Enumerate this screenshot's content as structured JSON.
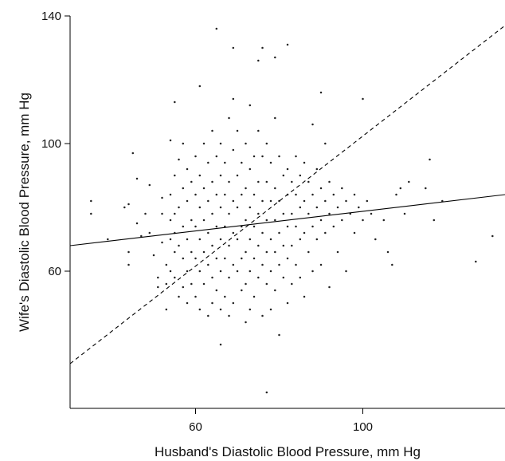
{
  "chart_data": {
    "type": "scatter",
    "title": "",
    "xlabel": "Husband's Diastolic Blood Pressure, mm Hg",
    "ylabel": "Wife's Diastolic Blood Pressure, mm Hg",
    "xlim": [
      30,
      134
    ],
    "ylim": [
      17,
      140
    ],
    "xticks": [
      60,
      100
    ],
    "yticks": [
      60,
      100,
      140
    ],
    "grid": false,
    "legend": "none",
    "colors": {
      "points": "#222222",
      "lines": "#000000"
    },
    "series": [
      {
        "kind": "points",
        "description_note": "",
        "points": [
          [
            35,
            82
          ],
          [
            35,
            78
          ],
          [
            39,
            70
          ],
          [
            43,
            80
          ],
          [
            44,
            81
          ],
          [
            44,
            66
          ],
          [
            44,
            62
          ],
          [
            45,
            97
          ],
          [
            46,
            89
          ],
          [
            46,
            75
          ],
          [
            47,
            71
          ],
          [
            48,
            78
          ],
          [
            49,
            87
          ],
          [
            49,
            72
          ],
          [
            50,
            65
          ],
          [
            51,
            58
          ],
          [
            51,
            55
          ],
          [
            52,
            83
          ],
          [
            52,
            78
          ],
          [
            52,
            69
          ],
          [
            53,
            62
          ],
          [
            53,
            56
          ],
          [
            53,
            48
          ],
          [
            54,
            101
          ],
          [
            54,
            84
          ],
          [
            54,
            76
          ],
          [
            54,
            70
          ],
          [
            54,
            60
          ],
          [
            55,
            113
          ],
          [
            55,
            90
          ],
          [
            55,
            78
          ],
          [
            55,
            72
          ],
          [
            55,
            66
          ],
          [
            55,
            58
          ],
          [
            56,
            95
          ],
          [
            56,
            80
          ],
          [
            56,
            68
          ],
          [
            56,
            52
          ],
          [
            57,
            100
          ],
          [
            57,
            86
          ],
          [
            57,
            74
          ],
          [
            57,
            64
          ],
          [
            57,
            55
          ],
          [
            58,
            92
          ],
          [
            58,
            82
          ],
          [
            58,
            70
          ],
          [
            58,
            60
          ],
          [
            58,
            50
          ],
          [
            59,
            88
          ],
          [
            59,
            76
          ],
          [
            59,
            66
          ],
          [
            59,
            56
          ],
          [
            60,
            96
          ],
          [
            60,
            84
          ],
          [
            60,
            74
          ],
          [
            60,
            64
          ],
          [
            60,
            52
          ],
          [
            61,
            118
          ],
          [
            61,
            90
          ],
          [
            61,
            80
          ],
          [
            61,
            70
          ],
          [
            61,
            60
          ],
          [
            61,
            48
          ],
          [
            62,
            100
          ],
          [
            62,
            86
          ],
          [
            62,
            76
          ],
          [
            62,
            66
          ],
          [
            62,
            56
          ],
          [
            63,
            94
          ],
          [
            63,
            82
          ],
          [
            63,
            72
          ],
          [
            63,
            62
          ],
          [
            63,
            46
          ],
          [
            64,
            104
          ],
          [
            64,
            88
          ],
          [
            64,
            78
          ],
          [
            64,
            68
          ],
          [
            64,
            58
          ],
          [
            64,
            50
          ],
          [
            65,
            136
          ],
          [
            65,
            96
          ],
          [
            65,
            84
          ],
          [
            65,
            74
          ],
          [
            65,
            64
          ],
          [
            65,
            54
          ],
          [
            66,
            37
          ],
          [
            66,
            100
          ],
          [
            66,
            90
          ],
          [
            66,
            80
          ],
          [
            66,
            70
          ],
          [
            66,
            60
          ],
          [
            66,
            48
          ],
          [
            67,
            94
          ],
          [
            67,
            84
          ],
          [
            67,
            74
          ],
          [
            67,
            64
          ],
          [
            67,
            52
          ],
          [
            68,
            108
          ],
          [
            68,
            88
          ],
          [
            68,
            78
          ],
          [
            68,
            68
          ],
          [
            68,
            58
          ],
          [
            68,
            46
          ],
          [
            69,
            130
          ],
          [
            69,
            114
          ],
          [
            69,
            98
          ],
          [
            69,
            82
          ],
          [
            69,
            72
          ],
          [
            69,
            62
          ],
          [
            69,
            50
          ],
          [
            70,
            104
          ],
          [
            70,
            90
          ],
          [
            70,
            80
          ],
          [
            70,
            70
          ],
          [
            70,
            60
          ],
          [
            71,
            94
          ],
          [
            71,
            84
          ],
          [
            71,
            74
          ],
          [
            71,
            64
          ],
          [
            71,
            54
          ],
          [
            72,
            100
          ],
          [
            72,
            86
          ],
          [
            72,
            76
          ],
          [
            72,
            66
          ],
          [
            72,
            56
          ],
          [
            72,
            44
          ],
          [
            73,
            112
          ],
          [
            73,
            92
          ],
          [
            73,
            80
          ],
          [
            73,
            70
          ],
          [
            73,
            60
          ],
          [
            73,
            48
          ],
          [
            74,
            96
          ],
          [
            74,
            84
          ],
          [
            74,
            74
          ],
          [
            74,
            64
          ],
          [
            74,
            52
          ],
          [
            75,
            126
          ],
          [
            75,
            104
          ],
          [
            75,
            88
          ],
          [
            75,
            78
          ],
          [
            75,
            68
          ],
          [
            75,
            58
          ],
          [
            76,
            130
          ],
          [
            76,
            96
          ],
          [
            76,
            82
          ],
          [
            76,
            72
          ],
          [
            76,
            62
          ],
          [
            76,
            46
          ],
          [
            77,
            22
          ],
          [
            77,
            100
          ],
          [
            77,
            88
          ],
          [
            77,
            76
          ],
          [
            77,
            66
          ],
          [
            77,
            56
          ],
          [
            78,
            94
          ],
          [
            78,
            82
          ],
          [
            78,
            70
          ],
          [
            78,
            60
          ],
          [
            78,
            48
          ],
          [
            79,
            127
          ],
          [
            79,
            108
          ],
          [
            79,
            86
          ],
          [
            79,
            76
          ],
          [
            79,
            66
          ],
          [
            79,
            54
          ],
          [
            80,
            96
          ],
          [
            80,
            82
          ],
          [
            80,
            72
          ],
          [
            80,
            62
          ],
          [
            80,
            40
          ],
          [
            81,
            90
          ],
          [
            81,
            78
          ],
          [
            81,
            68
          ],
          [
            81,
            58
          ],
          [
            82,
            131
          ],
          [
            82,
            92
          ],
          [
            82,
            84
          ],
          [
            82,
            74
          ],
          [
            82,
            64
          ],
          [
            82,
            50
          ],
          [
            83,
            88
          ],
          [
            83,
            78
          ],
          [
            83,
            68
          ],
          [
            83,
            56
          ],
          [
            84,
            96
          ],
          [
            84,
            84
          ],
          [
            84,
            74
          ],
          [
            84,
            62
          ],
          [
            85,
            90
          ],
          [
            85,
            80
          ],
          [
            85,
            70
          ],
          [
            85,
            58
          ],
          [
            86,
            94
          ],
          [
            86,
            82
          ],
          [
            86,
            72
          ],
          [
            86,
            52
          ],
          [
            87,
            88
          ],
          [
            87,
            78
          ],
          [
            87,
            66
          ],
          [
            88,
            106
          ],
          [
            88,
            84
          ],
          [
            88,
            74
          ],
          [
            88,
            60
          ],
          [
            89,
            92
          ],
          [
            89,
            80
          ],
          [
            89,
            70
          ],
          [
            90,
            116
          ],
          [
            90,
            86
          ],
          [
            90,
            76
          ],
          [
            90,
            62
          ],
          [
            91,
            100
          ],
          [
            91,
            82
          ],
          [
            91,
            72
          ],
          [
            92,
            88
          ],
          [
            92,
            78
          ],
          [
            92,
            55
          ],
          [
            93,
            84
          ],
          [
            93,
            74
          ],
          [
            94,
            80
          ],
          [
            94,
            66
          ],
          [
            95,
            86
          ],
          [
            95,
            76
          ],
          [
            96,
            82
          ],
          [
            96,
            60
          ],
          [
            97,
            78
          ],
          [
            98,
            84
          ],
          [
            98,
            72
          ],
          [
            99,
            80
          ],
          [
            100,
            114
          ],
          [
            100,
            76
          ],
          [
            101,
            82
          ],
          [
            102,
            78
          ],
          [
            103,
            70
          ],
          [
            105,
            76
          ],
          [
            106,
            66
          ],
          [
            107,
            62
          ],
          [
            108,
            84
          ],
          [
            109,
            86
          ],
          [
            110,
            78
          ],
          [
            111,
            88
          ],
          [
            115,
            86
          ],
          [
            116,
            95
          ],
          [
            117,
            76
          ],
          [
            119,
            82
          ],
          [
            127,
            63
          ],
          [
            131,
            71
          ]
        ]
      },
      {
        "kind": "line",
        "style": "solid",
        "x": [
          30,
          134
        ],
        "y": [
          68,
          84
        ]
      },
      {
        "kind": "line",
        "style": "dashed",
        "x": [
          30,
          134
        ],
        "y": [
          31,
          137
        ]
      }
    ]
  }
}
